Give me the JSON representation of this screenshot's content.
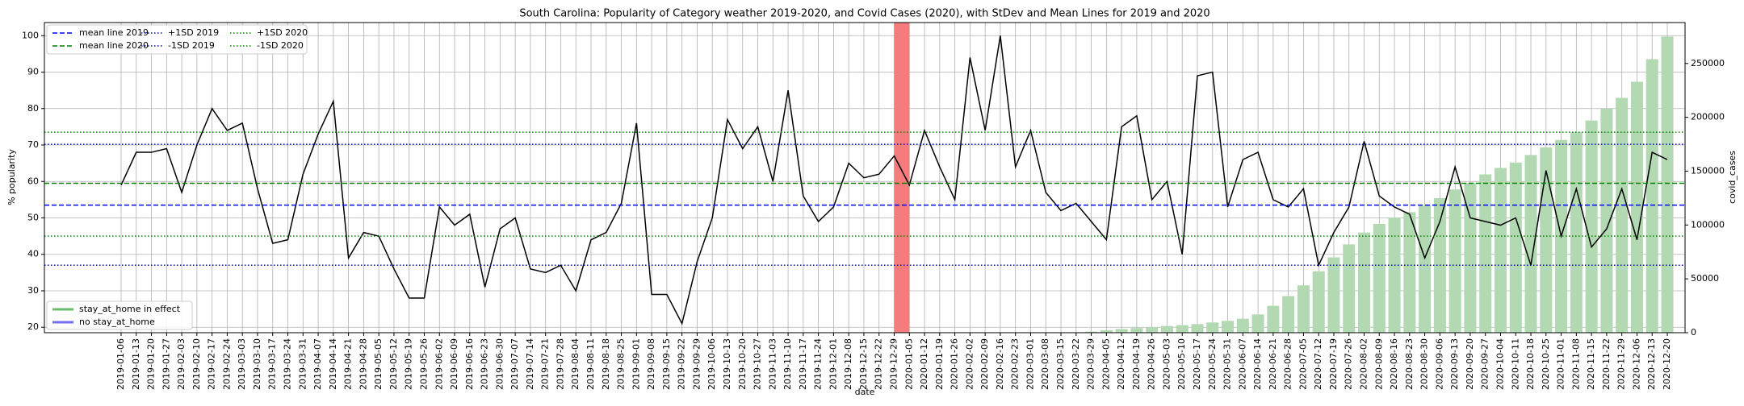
{
  "chart_data": {
    "type": "bar-line",
    "title": "South Carolina: Popularity of Category weather 2019-2020, and Covid Cases (2020), with StDev and Mean Lines for 2019 and 2020",
    "x_label": "date",
    "y_label": "% popularity",
    "y2_label": "covid_cases",
    "categories": [
      "2019-01-06",
      "2019-01-13",
      "2019-01-20",
      "2019-01-27",
      "2019-02-03",
      "2019-02-10",
      "2019-02-17",
      "2019-02-24",
      "2019-03-03",
      "2019-03-10",
      "2019-03-17",
      "2019-03-24",
      "2019-03-31",
      "2019-04-07",
      "2019-04-14",
      "2019-04-21",
      "2019-04-28",
      "2019-05-05",
      "2019-05-12",
      "2019-05-19",
      "2019-05-26",
      "2019-06-02",
      "2019-06-09",
      "2019-06-16",
      "2019-06-23",
      "2019-06-30",
      "2019-07-07",
      "2019-07-14",
      "2019-07-21",
      "2019-07-28",
      "2019-08-04",
      "2019-08-11",
      "2019-08-18",
      "2019-08-25",
      "2019-09-01",
      "2019-09-08",
      "2019-09-15",
      "2019-09-22",
      "2019-09-29",
      "2019-10-06",
      "2019-10-13",
      "2019-10-20",
      "2019-10-27",
      "2019-11-03",
      "2019-11-10",
      "2019-11-17",
      "2019-11-24",
      "2019-12-01",
      "2019-12-08",
      "2019-12-15",
      "2019-12-22",
      "2019-12-29",
      "2020-01-05",
      "2020-01-12",
      "2020-01-19",
      "2020-01-26",
      "2020-02-02",
      "2020-02-09",
      "2020-02-16",
      "2020-02-23",
      "2020-03-01",
      "2020-03-08",
      "2020-03-15",
      "2020-03-22",
      "2020-03-29",
      "2020-04-05",
      "2020-04-12",
      "2020-04-19",
      "2020-04-26",
      "2020-05-03",
      "2020-05-10",
      "2020-05-17",
      "2020-05-24",
      "2020-05-31",
      "2020-06-07",
      "2020-06-14",
      "2020-06-21",
      "2020-06-28",
      "2020-07-05",
      "2020-07-12",
      "2020-07-19",
      "2020-07-26",
      "2020-08-02",
      "2020-08-09",
      "2020-08-16",
      "2020-08-23",
      "2020-08-30",
      "2020-09-06",
      "2020-09-13",
      "2020-09-20",
      "2020-09-27",
      "2020-10-04",
      "2020-10-11",
      "2020-10-18",
      "2020-10-25",
      "2020-11-01",
      "2020-11-08",
      "2020-11-15",
      "2020-11-22",
      "2020-11-29",
      "2020-12-06",
      "2020-12-13",
      "2020-12-20"
    ],
    "series": [
      {
        "type": "line",
        "color": "#000000",
        "values": [
          59,
          68,
          68,
          69,
          57,
          70,
          80,
          74,
          76,
          58,
          43,
          44,
          62,
          73,
          82,
          39,
          46,
          45,
          36,
          28,
          28,
          53,
          48,
          51,
          31,
          47,
          50,
          36,
          35,
          37,
          30,
          44,
          46,
          54,
          76,
          29,
          29,
          21,
          38,
          50,
          77,
          69,
          75,
          60,
          85,
          56,
          49,
          53,
          65,
          61,
          62,
          67,
          59,
          74,
          64,
          55,
          94,
          74,
          100,
          64,
          74,
          57,
          52,
          54,
          49,
          44,
          75,
          78,
          55,
          60,
          40,
          89,
          90,
          53,
          66,
          68,
          55,
          53,
          58,
          37,
          46,
          53,
          71,
          56,
          53,
          51,
          39,
          49,
          64,
          50,
          49,
          48,
          50,
          37,
          63,
          45,
          58,
          42,
          47,
          58,
          44,
          68,
          66
        ]
      },
      {
        "type": "bar",
        "axis": "y2",
        "color": "#b3d9b3",
        "values": [
          null,
          null,
          null,
          null,
          null,
          null,
          null,
          null,
          null,
          null,
          null,
          null,
          null,
          null,
          null,
          null,
          null,
          null,
          null,
          null,
          null,
          null,
          null,
          null,
          null,
          null,
          null,
          null,
          null,
          null,
          null,
          null,
          null,
          null,
          null,
          null,
          null,
          null,
          null,
          null,
          null,
          null,
          null,
          null,
          null,
          null,
          null,
          null,
          null,
          null,
          null,
          null,
          null,
          null,
          null,
          null,
          null,
          null,
          null,
          null,
          null,
          null,
          null,
          300,
          1000,
          2300,
          3400,
          4300,
          5200,
          6200,
          7000,
          8000,
          9500,
          11000,
          13000,
          17000,
          25000,
          34000,
          44000,
          57000,
          70000,
          82000,
          93000,
          101000,
          107000,
          112000,
          118000,
          125000,
          133000,
          139000,
          147000,
          153000,
          158000,
          165000,
          172000,
          179000,
          186000,
          197000,
          208000,
          218000,
          233000,
          254000,
          275000
        ]
      }
    ],
    "reference_lines": [
      {
        "name": "mean line 2019",
        "value": 53.5,
        "color": "#0000ff",
        "style": "dashed"
      },
      {
        "name": "mean line 2020",
        "value": 59.5,
        "color": "#008000",
        "style": "dashed"
      },
      {
        "name": "+1SD 2019",
        "value": 70.2,
        "color": "#0000ff",
        "style": "dotted"
      },
      {
        "name": "-1SD 2019",
        "value": 37,
        "color": "#0000ff",
        "style": "dotted"
      },
      {
        "name": "+1SD 2020",
        "value": 73.5,
        "color": "#008000",
        "style": "dotted"
      },
      {
        "name": "-1SD 2020",
        "value": 45,
        "color": "#008000",
        "style": "dotted"
      }
    ],
    "highlight": {
      "from": "2019-12-29",
      "to": "2020-01-05",
      "color": "#f47c7c"
    },
    "legend2": [
      {
        "name": "stay_at_home in effect",
        "color": "#6cba6c"
      },
      {
        "name": "no stay_at_home",
        "color": "#7070e8"
      }
    ],
    "ylim": [
      18.5,
      103.6
    ],
    "yticks": [
      20,
      30,
      40,
      50,
      60,
      70,
      80,
      90,
      100
    ],
    "y2lim": [
      0,
      288000
    ],
    "y2ticks": [
      0,
      50000,
      100000,
      150000,
      200000,
      250000
    ],
    "grid": true
  }
}
